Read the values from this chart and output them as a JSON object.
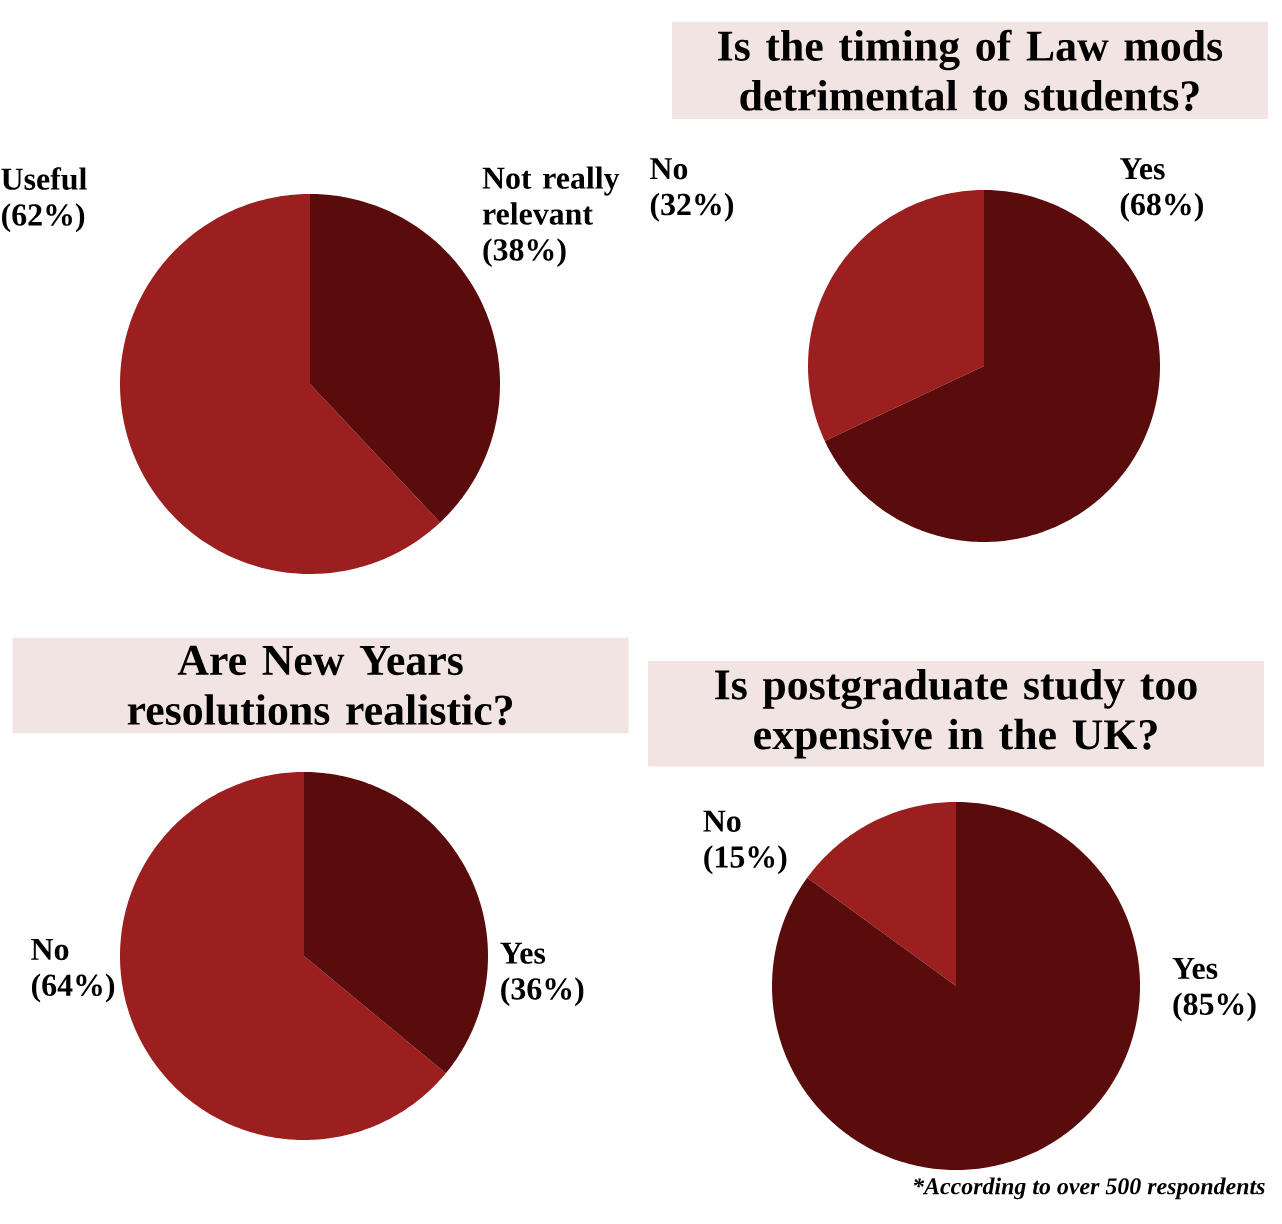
{
  "chart_data": [
    {
      "type": "pie",
      "categories": [
        "Useful",
        "Not really relevant"
      ],
      "values": [
        62,
        38
      ],
      "value_labels": [
        "(62%)",
        "(38%)"
      ],
      "colors": [
        "#9b1f1f",
        "#5a0b0b"
      ]
    },
    {
      "type": "pie",
      "title": "Is the timing of Law mods detrimental to students?",
      "categories": [
        "No",
        "Yes"
      ],
      "values": [
        32,
        68
      ],
      "value_labels": [
        "(32%)",
        "(68%)"
      ],
      "colors": [
        "#9b1f1f",
        "#5a0b0b"
      ]
    },
    {
      "type": "pie",
      "title": "Are New Years resolutions realistic?",
      "categories": [
        "No",
        "Yes"
      ],
      "values": [
        64,
        36
      ],
      "value_labels": [
        "(64%)",
        "(36%)"
      ],
      "colors": [
        "#9b1f1f",
        "#5a0b0b"
      ]
    },
    {
      "type": "pie",
      "title": "Is postgraduate study too expensive in the UK?",
      "categories": [
        "No",
        "Yes"
      ],
      "values": [
        15,
        85
      ],
      "value_labels": [
        "(15%)",
        "(85%)"
      ],
      "colors": [
        "#9b1f1f",
        "#5a0b0b"
      ],
      "annotations": [
        "*According to over 500 respondents"
      ]
    }
  ]
}
